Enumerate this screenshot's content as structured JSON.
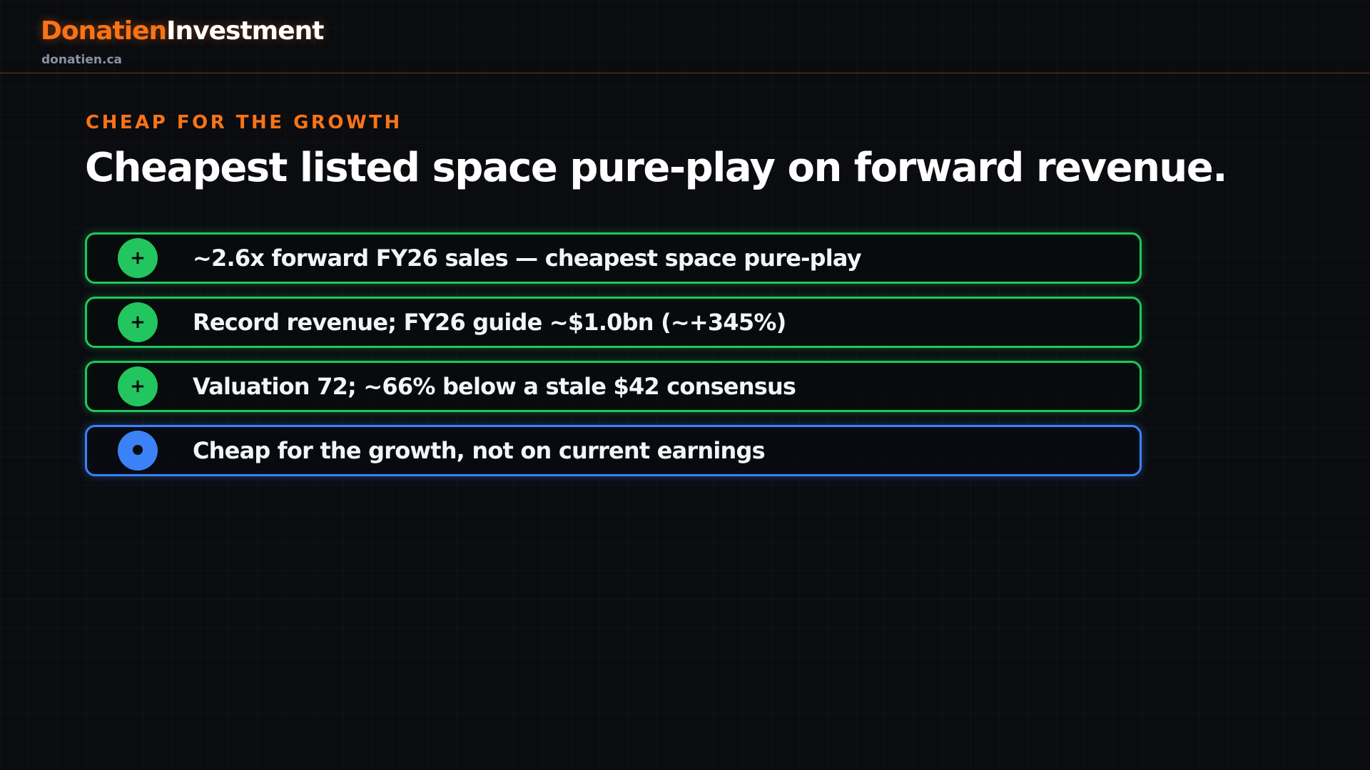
{
  "brand": {
    "name_part1": "Donatien",
    "name_part2": "Investment",
    "site": "donatien.ca",
    "accent_color": "#f97316"
  },
  "slide": {
    "eyebrow": "CHEAP FOR THE GROWTH",
    "title": "Cheapest listed space pure-play on forward revenue."
  },
  "items": [
    {
      "kind": "positive",
      "icon": "plus-icon",
      "badge": "+",
      "color": "#22c55e",
      "text": "~2.6x forward FY26 sales — cheapest space pure-play"
    },
    {
      "kind": "positive",
      "icon": "plus-icon",
      "badge": "+",
      "color": "#22c55e",
      "text": "Record revenue; FY26 guide ~$1.0bn (~+345%)"
    },
    {
      "kind": "positive",
      "icon": "plus-icon",
      "badge": "+",
      "color": "#22c55e",
      "text": "Valuation 72; ~66% below a stale $42 consensus"
    },
    {
      "kind": "neutral",
      "icon": "dot-icon",
      "color": "#3b82f6",
      "text": "Cheap for the growth, not on current earnings"
    }
  ]
}
